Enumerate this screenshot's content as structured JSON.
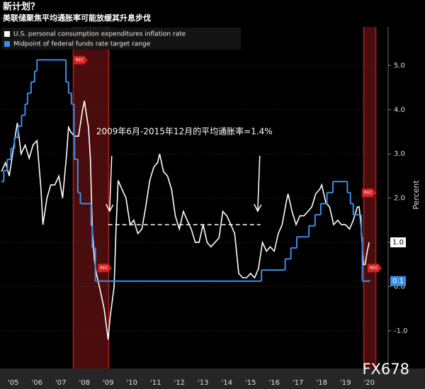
{
  "chart_data": {
    "type": "line",
    "title": "新计划？",
    "subtitle": "美联储聚焦平均通胀率可能放缓其升息步伐",
    "y_label": "Percent",
    "watermark": "FX678",
    "xlim": [
      2005.0,
      2021.3
    ],
    "ylim": [
      -1.85,
      5.87
    ],
    "xticks": [
      {
        "value": 2005.5,
        "label": "'05"
      },
      {
        "value": 2006.5,
        "label": "'06"
      },
      {
        "value": 2007.5,
        "label": "'07"
      },
      {
        "value": 2008.5,
        "label": "'08"
      },
      {
        "value": 2009.5,
        "label": "'09"
      },
      {
        "value": 2010.5,
        "label": "'10"
      },
      {
        "value": 2011.5,
        "label": "'11"
      },
      {
        "value": 2012.5,
        "label": "'12"
      },
      {
        "value": 2013.5,
        "label": "'13"
      },
      {
        "value": 2014.5,
        "label": "'14"
      },
      {
        "value": 2015.5,
        "label": "'15"
      },
      {
        "value": 2016.5,
        "label": "'16"
      },
      {
        "value": 2017.5,
        "label": "'17"
      },
      {
        "value": 2018.5,
        "label": "'18"
      },
      {
        "value": 2019.5,
        "label": "'19"
      },
      {
        "value": 2020.5,
        "label": "'20"
      }
    ],
    "yticks": [
      {
        "value": -1,
        "label": "-1.0"
      },
      {
        "value": 0,
        "label": "0.0"
      },
      {
        "value": 1,
        "label": "1.0"
      },
      {
        "value": 2,
        "label": "2.0"
      },
      {
        "value": 3,
        "label": "3.0"
      },
      {
        "value": 4,
        "label": "4.0"
      },
      {
        "value": 5,
        "label": "5.0"
      }
    ],
    "grid": true,
    "recessions": [
      {
        "start": 2008.03,
        "end": 2009.52
      },
      {
        "start": 2020.27,
        "end": 2020.78
      }
    ],
    "events": [
      {
        "x": 2008.31,
        "y": 5.12,
        "label": "REC"
      },
      {
        "x": 2009.33,
        "y": 0.42,
        "label": "REC"
      },
      {
        "x": 2020.46,
        "y": 2.12,
        "label": "REC"
      },
      {
        "x": 2020.7,
        "y": 0.42,
        "label": "REC"
      }
    ],
    "annotation": {
      "text": "2009年6月-2015年12月的平均通胀率=1.4%",
      "y": 1.4,
      "x": [
        2009.5,
        2015.92
      ]
    },
    "series": [
      {
        "name": "U.S. personal consumption expenditures inflation rate",
        "color": "#ffffff",
        "step": false,
        "last_label": {
          "value": 1.0,
          "label": "1.0"
        },
        "x": [
          2005.0,
          2005.17,
          2005.33,
          2005.5,
          2005.67,
          2005.83,
          2006.0,
          2006.17,
          2006.33,
          2006.5,
          2006.67,
          2006.75,
          2006.92,
          2007.08,
          2007.25,
          2007.42,
          2007.58,
          2007.75,
          2007.83,
          2007.92,
          2008.08,
          2008.25,
          2008.42,
          2008.5,
          2008.58,
          2008.67,
          2008.75,
          2008.83,
          2008.92,
          2009.0,
          2009.17,
          2009.33,
          2009.5,
          2009.58,
          2009.75,
          2009.83,
          2009.92,
          2010.08,
          2010.25,
          2010.42,
          2010.58,
          2010.75,
          2010.92,
          2011.08,
          2011.25,
          2011.42,
          2011.58,
          2011.67,
          2011.83,
          2012.0,
          2012.17,
          2012.33,
          2012.5,
          2012.67,
          2012.83,
          2013.0,
          2013.17,
          2013.33,
          2013.5,
          2013.67,
          2013.83,
          2014.0,
          2014.17,
          2014.33,
          2014.5,
          2014.67,
          2014.83,
          2015.0,
          2015.17,
          2015.33,
          2015.5,
          2015.67,
          2015.83,
          2016.0,
          2016.17,
          2016.33,
          2016.5,
          2016.67,
          2016.83,
          2017.0,
          2017.08,
          2017.25,
          2017.42,
          2017.58,
          2017.75,
          2017.92,
          2018.08,
          2018.25,
          2018.42,
          2018.5,
          2018.67,
          2018.83,
          2019.0,
          2019.17,
          2019.33,
          2019.5,
          2019.67,
          2019.83,
          2020.0,
          2020.08,
          2020.17,
          2020.25,
          2020.33,
          2020.42,
          2020.5
        ],
        "values": [
          2.6,
          2.8,
          2.5,
          3.1,
          3.7,
          3.0,
          3.2,
          2.9,
          3.2,
          3.3,
          2.2,
          1.4,
          2.0,
          2.3,
          2.3,
          2.5,
          2.0,
          3.0,
          3.6,
          3.5,
          3.4,
          3.4,
          4.0,
          4.2,
          3.9,
          3.6,
          2.9,
          1.3,
          0.6,
          0.3,
          -0.1,
          -0.5,
          -1.2,
          -0.7,
          0.0,
          1.3,
          2.4,
          2.2,
          2.0,
          1.4,
          1.5,
          1.2,
          1.3,
          1.8,
          2.4,
          2.7,
          2.8,
          3.0,
          2.6,
          2.5,
          2.2,
          1.6,
          1.3,
          1.7,
          1.5,
          1.3,
          1.0,
          1.0,
          1.4,
          1.0,
          0.9,
          1.0,
          1.1,
          1.7,
          1.6,
          1.4,
          1.2,
          0.3,
          0.2,
          0.2,
          0.3,
          0.2,
          0.4,
          1.0,
          0.8,
          0.9,
          0.8,
          1.2,
          1.4,
          1.9,
          2.1,
          1.7,
          1.4,
          1.6,
          1.6,
          1.7,
          1.8,
          2.1,
          2.2,
          2.3,
          1.9,
          1.8,
          1.4,
          1.5,
          1.4,
          1.4,
          1.3,
          1.5,
          1.8,
          1.8,
          1.3,
          0.5,
          0.5,
          0.8,
          1.0
        ]
      },
      {
        "name": "Midpoint of federal funds rate target range",
        "color": "#3a8ee6",
        "step": true,
        "last_label": {
          "value": 0.125,
          "label": "0.1"
        },
        "x": [
          2005.0,
          2005.1,
          2005.25,
          2005.4,
          2005.55,
          2005.7,
          2005.85,
          2006.0,
          2006.1,
          2006.25,
          2006.4,
          2006.5,
          2007.72,
          2007.83,
          2007.95,
          2008.06,
          2008.08,
          2008.22,
          2008.33,
          2008.78,
          2008.83,
          2008.96,
          2015.96,
          2016.96,
          2017.2,
          2017.45,
          2017.96,
          2018.22,
          2018.46,
          2018.72,
          2018.97,
          2019.58,
          2019.71,
          2019.83,
          2020.17,
          2020.21,
          2020.55
        ],
        "values": [
          2.375,
          2.625,
          2.875,
          3.125,
          3.375,
          3.625,
          3.875,
          4.125,
          4.375,
          4.625,
          4.875,
          5.125,
          4.625,
          4.375,
          4.125,
          3.375,
          2.875,
          2.125,
          1.875,
          1.375,
          0.875,
          0.125,
          0.375,
          0.625,
          0.875,
          1.125,
          1.375,
          1.625,
          1.875,
          2.125,
          2.375,
          2.125,
          1.875,
          1.625,
          1.125,
          0.125,
          0.125
        ]
      }
    ]
  }
}
